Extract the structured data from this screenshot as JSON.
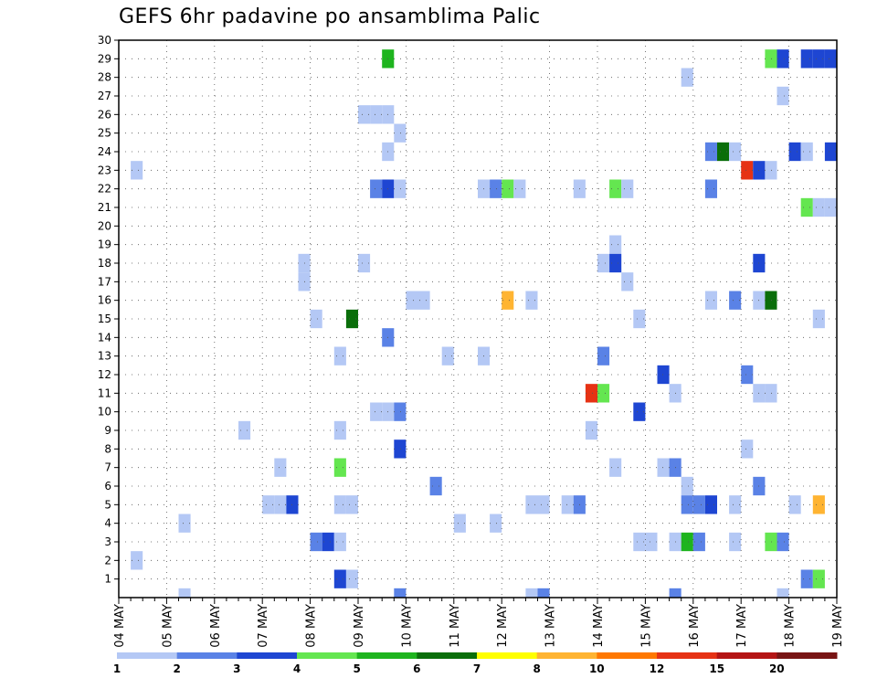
{
  "chart_data": {
    "type": "heatmap",
    "title": "GEFS 6hr padavine po ansamblima Palic",
    "xlabel": "",
    "ylabel": "",
    "x_steps_per_day": 4,
    "x_range_steps": [
      0,
      60
    ],
    "ylim": [
      0,
      30
    ],
    "y_ticks": [
      1,
      2,
      3,
      4,
      5,
      6,
      7,
      8,
      9,
      10,
      11,
      12,
      13,
      14,
      15,
      16,
      17,
      18,
      19,
      20,
      21,
      22,
      23,
      24,
      25,
      26,
      27,
      28,
      29,
      30
    ],
    "x_tick_labels": [
      "04 MAY",
      "05 MAY",
      "06 MAY",
      "07 MAY",
      "08 MAY",
      "09 MAY",
      "10 MAY",
      "11 MAY",
      "12 MAY",
      "13 MAY",
      "14 MAY",
      "15 MAY",
      "16 MAY",
      "17 MAY",
      "18 MAY",
      "19 MAY"
    ],
    "grid": true,
    "legend_position": "bottom",
    "legend_colors": [
      "#b4c8f5",
      "#5a82e6",
      "#1e46d2",
      "#64e650",
      "#1eb41e",
      "#0a6e0a",
      "#ffff00",
      "#ffb432",
      "#ff7800",
      "#e63214",
      "#b41414",
      "#781414"
    ],
    "legend_labels": [
      "1",
      "2",
      "3",
      "4",
      "5",
      "6",
      "7",
      "8",
      "10",
      "12",
      "15",
      "20"
    ],
    "series": [
      {
        "y": 29,
        "cells": [
          [
            22,
            5
          ],
          [
            54,
            4
          ],
          [
            55,
            3
          ],
          [
            57,
            3
          ],
          [
            58,
            3
          ],
          [
            59,
            3
          ]
        ]
      },
      {
        "y": 28,
        "cells": [
          [
            47,
            1
          ]
        ]
      },
      {
        "y": 27,
        "cells": [
          [
            55,
            1
          ]
        ]
      },
      {
        "y": 26,
        "cells": [
          [
            20,
            1
          ],
          [
            21,
            1
          ],
          [
            22,
            1
          ]
        ]
      },
      {
        "y": 25,
        "cells": [
          [
            23,
            1
          ]
        ]
      },
      {
        "y": 24,
        "cells": [
          [
            22,
            1
          ],
          [
            49,
            2
          ],
          [
            50,
            6
          ],
          [
            51,
            1
          ],
          [
            56,
            3
          ],
          [
            57,
            1
          ],
          [
            59,
            3
          ]
        ]
      },
      {
        "y": 23,
        "cells": [
          [
            1,
            1
          ],
          [
            52,
            10
          ],
          [
            53,
            3
          ],
          [
            54,
            1
          ]
        ]
      },
      {
        "y": 22,
        "cells": [
          [
            21,
            2
          ],
          [
            22,
            3
          ],
          [
            23,
            1
          ],
          [
            30,
            1
          ],
          [
            31,
            2
          ],
          [
            32,
            4
          ],
          [
            33,
            1
          ],
          [
            38,
            1
          ],
          [
            41,
            4
          ],
          [
            42,
            1
          ],
          [
            49,
            2
          ]
        ]
      },
      {
        "y": 21,
        "cells": [
          [
            57,
            4
          ],
          [
            58,
            1
          ],
          [
            59,
            1
          ]
        ]
      },
      {
        "y": 20,
        "cells": []
      },
      {
        "y": 19,
        "cells": [
          [
            41,
            1
          ]
        ]
      },
      {
        "y": 18,
        "cells": [
          [
            15,
            1
          ],
          [
            20,
            1
          ],
          [
            40,
            1
          ],
          [
            41,
            3
          ],
          [
            53,
            3
          ]
        ]
      },
      {
        "y": 17,
        "cells": [
          [
            15,
            1
          ],
          [
            42,
            1
          ]
        ]
      },
      {
        "y": 16,
        "cells": [
          [
            24,
            1
          ],
          [
            25,
            1
          ],
          [
            32,
            8
          ],
          [
            34,
            1
          ],
          [
            49,
            1
          ],
          [
            51,
            2
          ],
          [
            53,
            1
          ],
          [
            54,
            6
          ]
        ]
      },
      {
        "y": 15,
        "cells": [
          [
            16,
            1
          ],
          [
            19,
            6
          ],
          [
            43,
            1
          ],
          [
            58,
            1
          ]
        ]
      },
      {
        "y": 14,
        "cells": [
          [
            22,
            2
          ]
        ]
      },
      {
        "y": 13,
        "cells": [
          [
            18,
            1
          ],
          [
            27,
            1
          ],
          [
            30,
            1
          ],
          [
            40,
            2
          ]
        ]
      },
      {
        "y": 12,
        "cells": [
          [
            45,
            3
          ],
          [
            52,
            2
          ]
        ]
      },
      {
        "y": 11,
        "cells": [
          [
            39,
            10
          ],
          [
            40,
            4
          ],
          [
            46,
            1
          ],
          [
            53,
            1
          ],
          [
            54,
            1
          ]
        ]
      },
      {
        "y": 10,
        "cells": [
          [
            21,
            1
          ],
          [
            22,
            1
          ],
          [
            23,
            2
          ],
          [
            43,
            3
          ]
        ]
      },
      {
        "y": 9,
        "cells": [
          [
            10,
            1
          ],
          [
            18,
            1
          ],
          [
            39,
            1
          ]
        ]
      },
      {
        "y": 8,
        "cells": [
          [
            23,
            3
          ],
          [
            52,
            1
          ]
        ]
      },
      {
        "y": 7,
        "cells": [
          [
            13,
            1
          ],
          [
            18,
            4
          ],
          [
            41,
            1
          ],
          [
            45,
            1
          ],
          [
            46,
            2
          ]
        ]
      },
      {
        "y": 6,
        "cells": [
          [
            26,
            2
          ],
          [
            47,
            1
          ],
          [
            53,
            2
          ]
        ]
      },
      {
        "y": 5,
        "cells": [
          [
            12,
            1
          ],
          [
            13,
            1
          ],
          [
            14,
            3
          ],
          [
            18,
            1
          ],
          [
            19,
            1
          ],
          [
            34,
            1
          ],
          [
            35,
            1
          ],
          [
            37,
            1
          ],
          [
            38,
            2
          ],
          [
            47,
            2
          ],
          [
            48,
            2
          ],
          [
            49,
            3
          ],
          [
            51,
            1
          ],
          [
            56,
            1
          ],
          [
            58,
            8
          ]
        ]
      },
      {
        "y": 4,
        "cells": [
          [
            5,
            1
          ],
          [
            28,
            1
          ],
          [
            31,
            1
          ]
        ]
      },
      {
        "y": 3,
        "cells": [
          [
            16,
            2
          ],
          [
            17,
            3
          ],
          [
            18,
            1
          ],
          [
            43,
            1
          ],
          [
            44,
            1
          ],
          [
            46,
            1
          ],
          [
            47,
            5
          ],
          [
            48,
            2
          ],
          [
            51,
            1
          ],
          [
            54,
            4
          ],
          [
            55,
            2
          ]
        ]
      },
      {
        "y": 2,
        "cells": [
          [
            1,
            1
          ]
        ]
      },
      {
        "y": 1,
        "cells": [
          [
            18,
            3
          ],
          [
            19,
            1
          ],
          [
            57,
            2
          ],
          [
            58,
            4
          ]
        ]
      },
      {
        "y": 0,
        "cells": [
          [
            5,
            1
          ],
          [
            23,
            2
          ],
          [
            34,
            1
          ],
          [
            35,
            2
          ],
          [
            46,
            2
          ],
          [
            55,
            1
          ]
        ]
      }
    ]
  }
}
